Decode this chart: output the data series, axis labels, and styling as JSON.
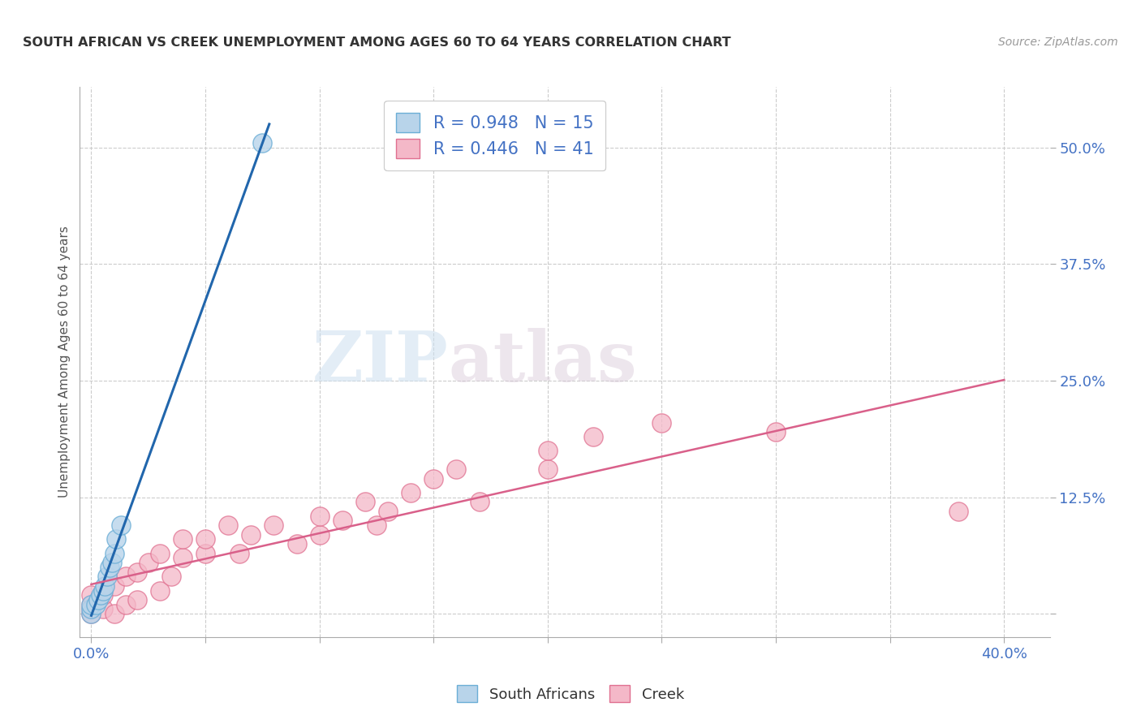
{
  "title": "SOUTH AFRICAN VS CREEK UNEMPLOYMENT AMONG AGES 60 TO 64 YEARS CORRELATION CHART",
  "source": "Source: ZipAtlas.com",
  "ylabel": "Unemployment Among Ages 60 to 64 years",
  "xlim": [
    -0.005,
    0.42
  ],
  "ylim": [
    -0.025,
    0.565
  ],
  "xticks": [
    0.0,
    0.05,
    0.1,
    0.15,
    0.2,
    0.25,
    0.3,
    0.35,
    0.4
  ],
  "xticklabels": [
    "0.0%",
    "",
    "",
    "",
    "",
    "",
    "",
    "",
    "40.0%"
  ],
  "yticks": [
    0.0,
    0.125,
    0.25,
    0.375,
    0.5
  ],
  "yticklabels": [
    "",
    "12.5%",
    "25.0%",
    "37.5%",
    "50.0%"
  ],
  "south_african_x": [
    0.0,
    0.0,
    0.0,
    0.002,
    0.003,
    0.004,
    0.005,
    0.006,
    0.007,
    0.008,
    0.009,
    0.01,
    0.011,
    0.013,
    0.075
  ],
  "south_african_y": [
    0.0,
    0.005,
    0.01,
    0.01,
    0.015,
    0.02,
    0.025,
    0.03,
    0.04,
    0.05,
    0.055,
    0.065,
    0.08,
    0.095,
    0.505
  ],
  "creek_x": [
    0.0,
    0.0,
    0.0,
    0.0,
    0.005,
    0.005,
    0.01,
    0.01,
    0.015,
    0.015,
    0.02,
    0.02,
    0.025,
    0.03,
    0.03,
    0.035,
    0.04,
    0.04,
    0.05,
    0.05,
    0.06,
    0.065,
    0.07,
    0.08,
    0.09,
    0.1,
    0.1,
    0.11,
    0.12,
    0.125,
    0.13,
    0.14,
    0.15,
    0.16,
    0.17,
    0.2,
    0.2,
    0.22,
    0.25,
    0.3,
    0.38
  ],
  "creek_y": [
    0.0,
    0.005,
    0.01,
    0.02,
    0.005,
    0.02,
    0.0,
    0.03,
    0.01,
    0.04,
    0.015,
    0.045,
    0.055,
    0.025,
    0.065,
    0.04,
    0.06,
    0.08,
    0.065,
    0.08,
    0.095,
    0.065,
    0.085,
    0.095,
    0.075,
    0.085,
    0.105,
    0.1,
    0.12,
    0.095,
    0.11,
    0.13,
    0.145,
    0.155,
    0.12,
    0.155,
    0.175,
    0.19,
    0.205,
    0.195,
    0.11
  ],
  "sa_color": "#b8d4ea",
  "sa_edge_color": "#6baed6",
  "creek_color": "#f4b8c8",
  "creek_edge_color": "#e07090",
  "sa_line_color": "#2166ac",
  "creek_line_color": "#d9608a",
  "legend_sa_label": "R = 0.948   N = 15",
  "legend_creek_label": "R = 0.446   N = 41",
  "legend_r_color": "#4472c4",
  "legend_n_color": "#4472c4",
  "watermark_zip": "ZIP",
  "watermark_atlas": "atlas",
  "background_color": "#ffffff",
  "grid_color": "#cccccc"
}
